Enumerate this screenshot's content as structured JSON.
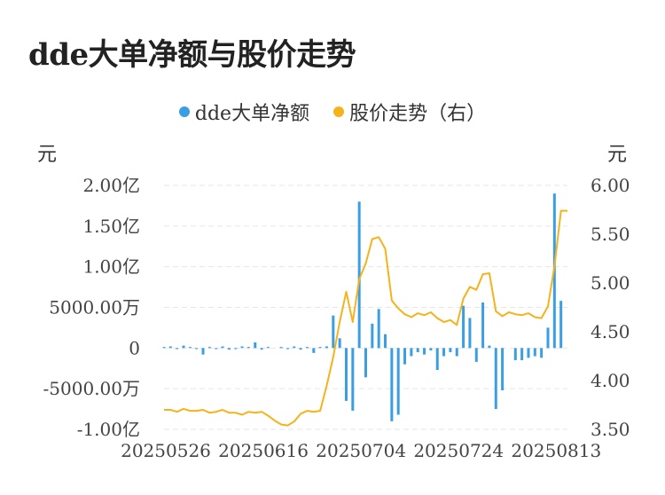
{
  "title": "dde大单净额与股价走势",
  "legend": [
    {
      "label": "dde大单净额",
      "color": "#3a9ee4"
    },
    {
      "label": "股价走势（右）",
      "color": "#f5b31b"
    }
  ],
  "left_unit": "元",
  "right_unit": "元",
  "chart_data": {
    "type": "bar+line",
    "left_axis": {
      "ticks": [
        "2.00亿",
        "1.50亿",
        "1.00亿",
        "5000.00万",
        "0",
        "-5000.00万",
        "-1.00亿"
      ],
      "tick_values": [
        200000000,
        150000000,
        100000000,
        50000000,
        0,
        -50000000,
        -100000000
      ],
      "range": [
        -100000000,
        200000000
      ]
    },
    "right_axis": {
      "ticks": [
        "6.00",
        "5.50",
        "5.00",
        "4.50",
        "4.00",
        "3.50"
      ],
      "tick_values": [
        6.0,
        5.5,
        5.0,
        4.5,
        4.0,
        3.5
      ],
      "range": [
        3.5,
        6.0
      ]
    },
    "x_tick_labels": [
      "20250526",
      "20250616",
      "20250704",
      "20250724",
      "20250813"
    ],
    "x_tick_index": [
      0,
      15,
      30,
      45,
      60
    ],
    "n_points": 63,
    "series": [
      {
        "name": "dde大单净额",
        "type": "bar",
        "axis": "left",
        "values": [
          1000000,
          2000000,
          -1000000,
          3000000,
          1000000,
          -1000000,
          -8000000,
          1000000,
          -1000000,
          2000000,
          -2000000,
          -1000000,
          2000000,
          1000000,
          7000000,
          -2000000,
          1000000,
          0,
          1000000,
          -1000000,
          2000000,
          -2000000,
          1000000,
          -6000000,
          1000000,
          2000000,
          40000000,
          12000000,
          -65000000,
          -77000000,
          180000000,
          -36000000,
          30000000,
          48000000,
          17000000,
          -90000000,
          -82000000,
          -20000000,
          -10000000,
          -5000000,
          -8000000,
          -3000000,
          -27000000,
          -10000000,
          -5000000,
          -10000000,
          52000000,
          37000000,
          -17000000,
          56000000,
          3000000,
          -75000000,
          -52000000,
          0,
          -15000000,
          -15000000,
          -12000000,
          -10000000,
          -12000000,
          25000000,
          190000000,
          58000000,
          0
        ]
      },
      {
        "name": "股价走势（右）",
        "type": "line",
        "axis": "right",
        "values": [
          3.7,
          3.7,
          3.68,
          3.71,
          3.69,
          3.69,
          3.7,
          3.67,
          3.68,
          3.7,
          3.67,
          3.67,
          3.65,
          3.68,
          3.67,
          3.68,
          3.64,
          3.59,
          3.55,
          3.54,
          3.58,
          3.66,
          3.69,
          3.68,
          3.69,
          3.95,
          4.24,
          4.6,
          4.91,
          4.6,
          5.04,
          5.2,
          5.45,
          5.47,
          5.35,
          4.82,
          4.74,
          4.68,
          4.65,
          4.69,
          4.67,
          4.7,
          4.64,
          4.6,
          4.62,
          4.57,
          4.84,
          4.96,
          4.93,
          5.09,
          5.1,
          4.71,
          4.66,
          4.7,
          4.68,
          4.67,
          4.69,
          4.65,
          4.64,
          4.76,
          5.17,
          5.74,
          5.74
        ]
      }
    ]
  }
}
